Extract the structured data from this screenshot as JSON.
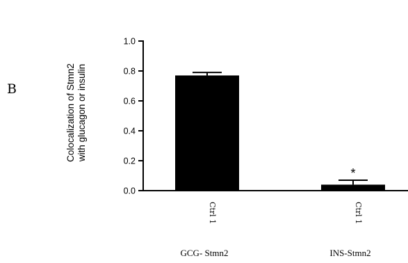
{
  "panel_label": "B",
  "chart_data": {
    "type": "bar",
    "categories": [
      "Ctrl 1",
      "Ctrl 1"
    ],
    "group_labels": [
      "GCG- Stmn2",
      "INS-Stmn2"
    ],
    "values": [
      0.77,
      0.04
    ],
    "errors": [
      0.02,
      0.03
    ],
    "significance": [
      "",
      "*"
    ],
    "ylabel_lines": [
      "Colocalization of Stmn2",
      "with glucagon or insulin"
    ],
    "ylim": [
      0,
      1.0
    ],
    "yticks": [
      0.0,
      0.2,
      0.4,
      0.6,
      0.8,
      1.0
    ],
    "ytick_labels": [
      "0.0",
      "0.2",
      "0.4",
      "0.6",
      "0.8",
      "1.0"
    ],
    "bar_color": "#000000",
    "grid": false,
    "legend": "none"
  }
}
